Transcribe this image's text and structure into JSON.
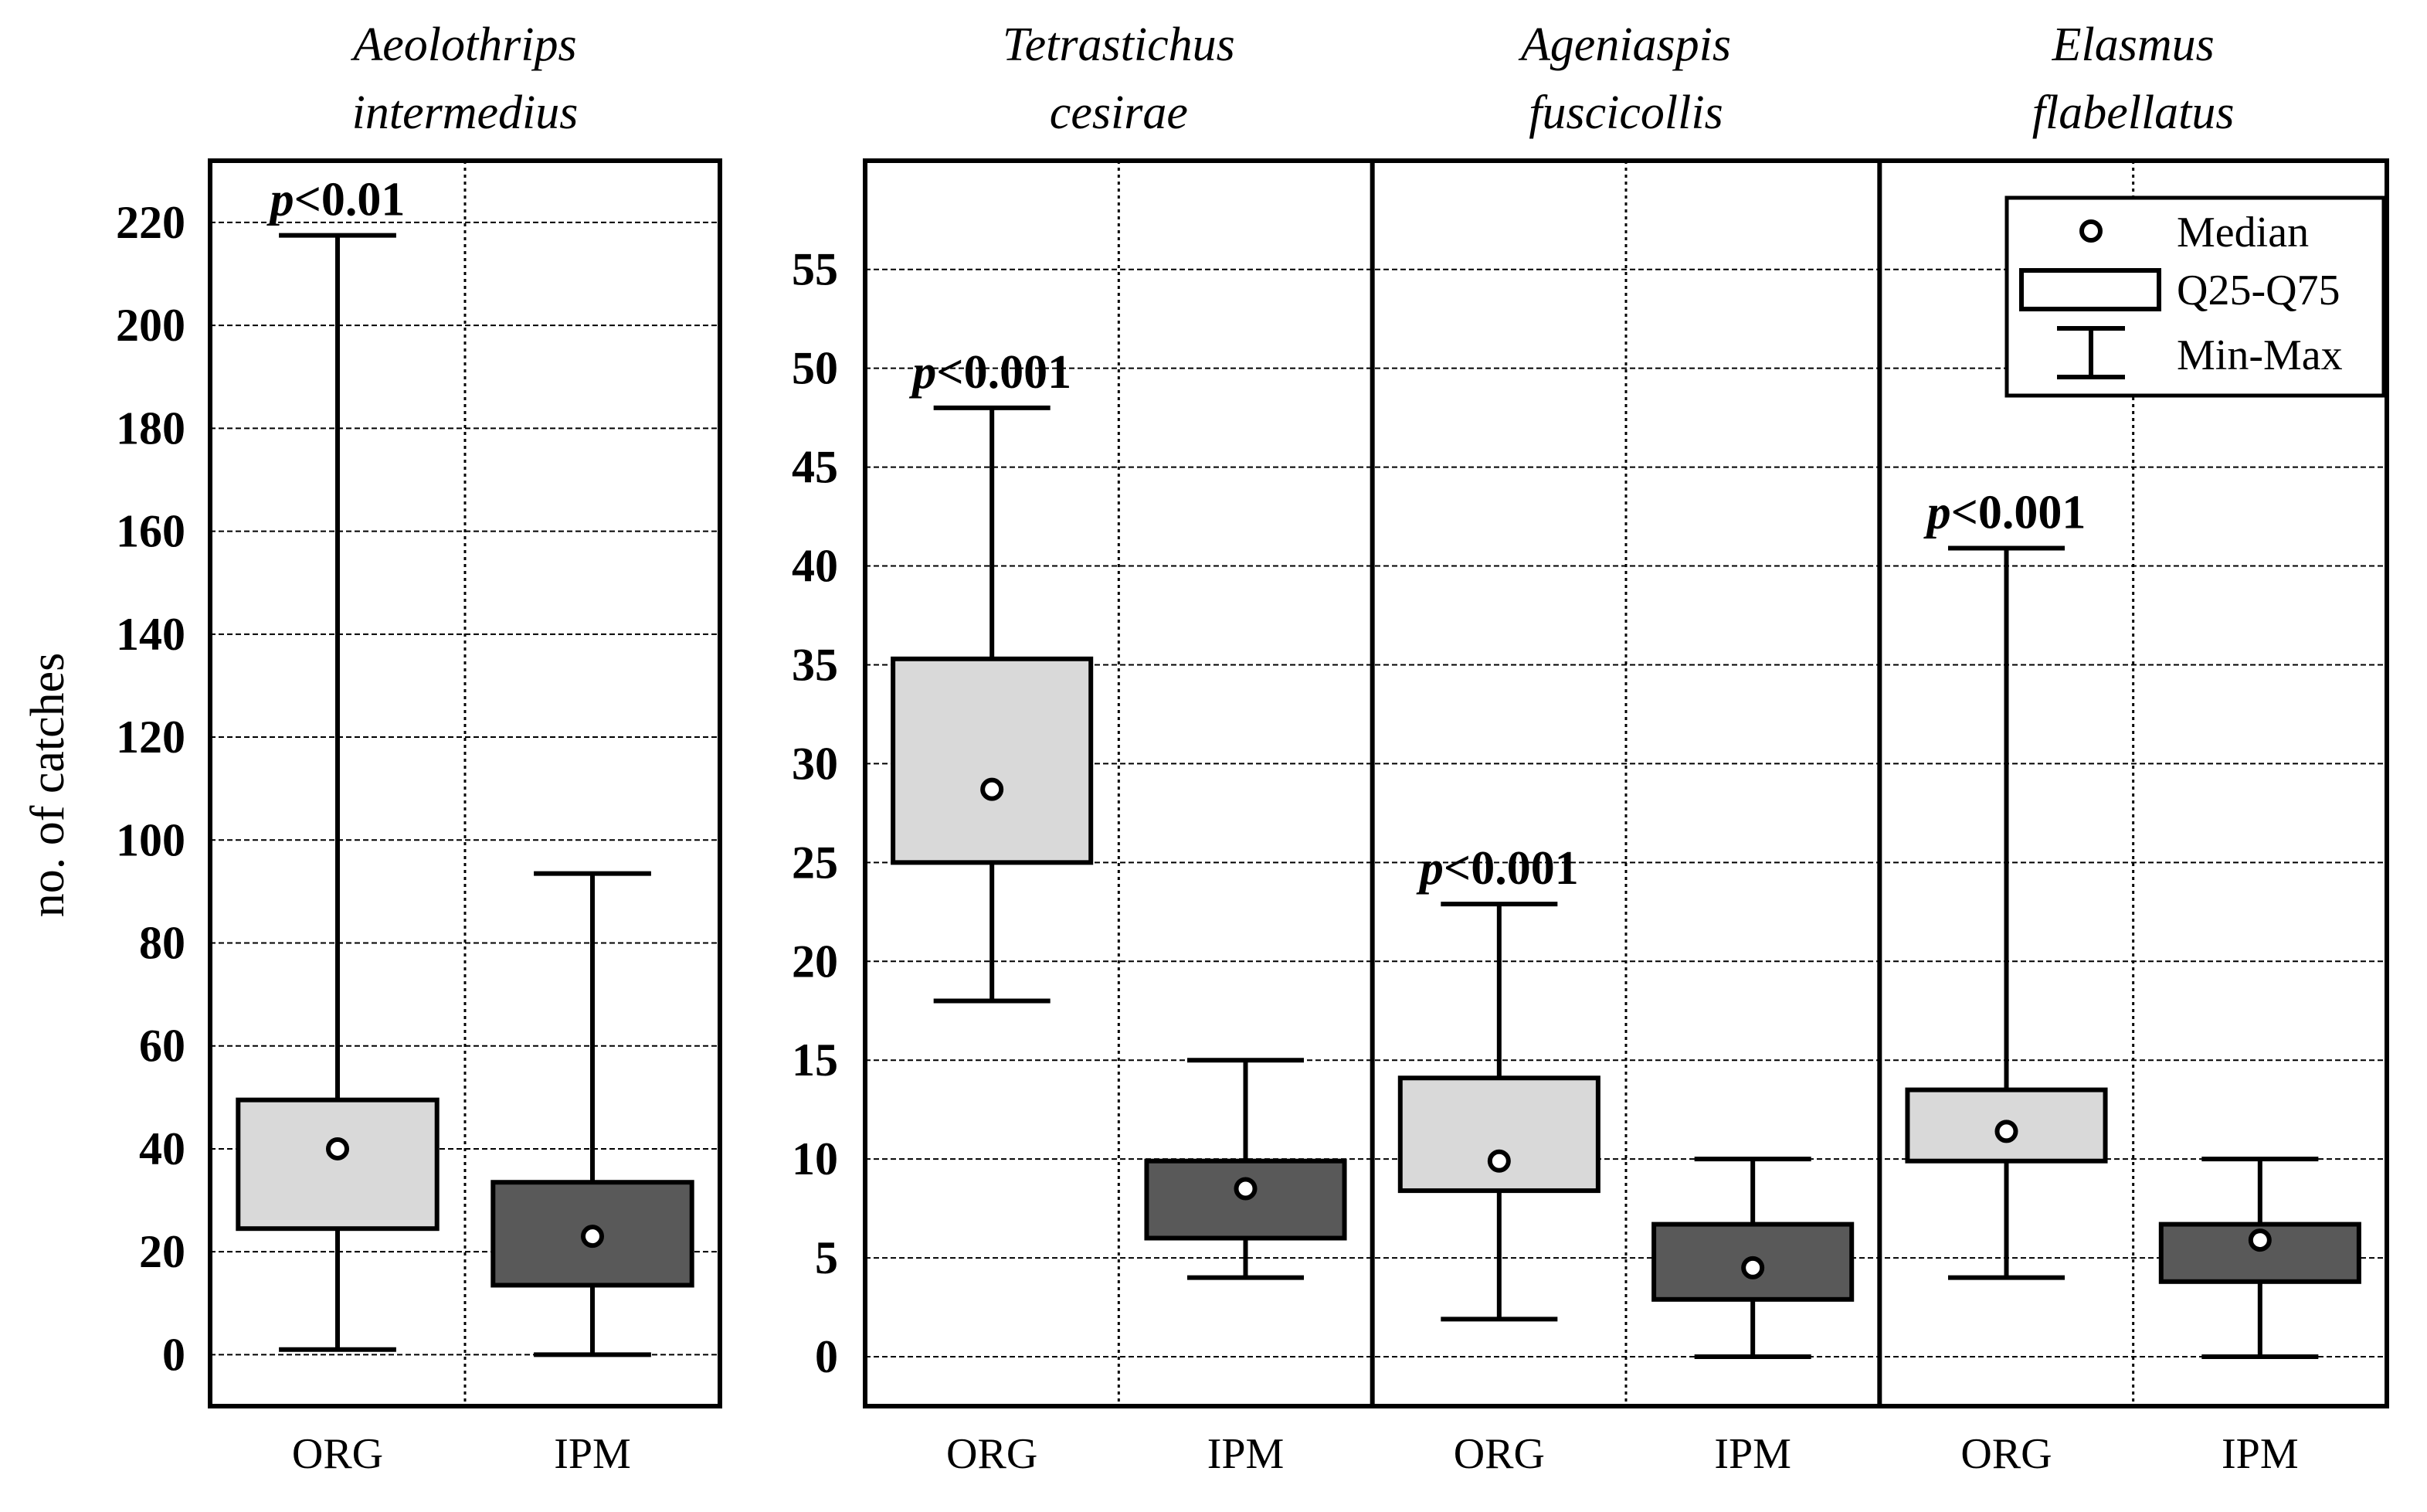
{
  "chart_data": {
    "type": "boxplot",
    "ylabel": "no. of catches",
    "p_prefix": "p",
    "legend": {
      "median_label": "Median",
      "box_label": "Q25-Q75",
      "whisker_label": "Min-Max",
      "placement": "top-right of right panel"
    },
    "colors": {
      "ORG": "#d9d9d9",
      "IPM": "#595959",
      "median_fill": "#ffffff",
      "stroke": "#000000"
    },
    "panels": [
      {
        "id": "left",
        "ylim": [
          -10,
          232
        ],
        "ticks": [
          0,
          20,
          40,
          60,
          80,
          100,
          120,
          140,
          160,
          180,
          200,
          220
        ],
        "species": [
          {
            "title_line1": "Aeolothrips",
            "title_line2": "intermedius",
            "p_value": "<0.01",
            "groups": [
              {
                "label": "ORG",
                "min": 1,
                "q25": 24.5,
                "median": 40,
                "q75": 49.5,
                "max": 217.5
              },
              {
                "label": "IPM",
                "min": 0,
                "q25": 13.5,
                "median": 23,
                "q75": 33.5,
                "max": 93.5
              }
            ]
          }
        ]
      },
      {
        "id": "right",
        "ylim": [
          -2.5,
          60.5
        ],
        "ticks": [
          0,
          5,
          10,
          15,
          20,
          25,
          30,
          35,
          40,
          45,
          50,
          55
        ],
        "species": [
          {
            "title_line1": "Tetrastichus",
            "title_line2": "cesirae",
            "p_value": "<0.001",
            "groups": [
              {
                "label": "ORG",
                "min": 18,
                "q25": 25,
                "median": 28.7,
                "q75": 35.3,
                "max": 48
              },
              {
                "label": "IPM",
                "min": 4,
                "q25": 6,
                "median": 8.5,
                "q75": 9.9,
                "max": 15
              }
            ]
          },
          {
            "title_line1": "Ageniaspis",
            "title_line2": "fuscicollis",
            "p_value": "<0.001",
            "groups": [
              {
                "label": "ORG",
                "min": 1.9,
                "q25": 8.4,
                "median": 9.9,
                "q75": 14.1,
                "max": 22.9
              },
              {
                "label": "IPM",
                "min": 0,
                "q25": 2.9,
                "median": 4.5,
                "q75": 6.7,
                "max": 10
              }
            ]
          },
          {
            "title_line1": "Elasmus",
            "title_line2": "flabellatus",
            "p_value": "<0.001",
            "groups": [
              {
                "label": "ORG",
                "min": 4,
                "q25": 9.9,
                "median": 11.4,
                "q75": 13.5,
                "max": 40.9
              },
              {
                "label": "IPM",
                "min": 0,
                "q25": 3.8,
                "median": 5.9,
                "q75": 6.7,
                "max": 10
              }
            ]
          }
        ]
      }
    ]
  }
}
